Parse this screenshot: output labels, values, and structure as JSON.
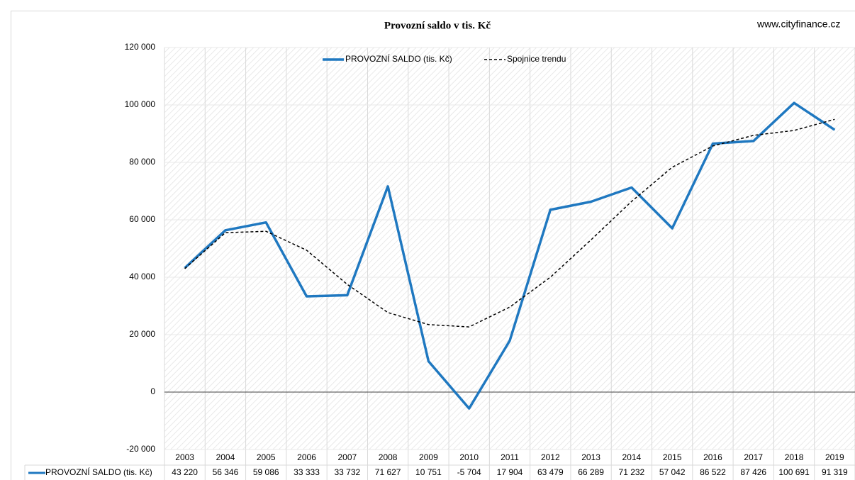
{
  "chart_data": {
    "type": "line",
    "title": "Provozní saldo v tis. Kč",
    "watermark": "www.cityfinance.cz",
    "categories": [
      "2003",
      "2004",
      "2005",
      "2006",
      "2007",
      "2008",
      "2009",
      "2010",
      "2011",
      "2012",
      "2013",
      "2014",
      "2015",
      "2016",
      "2017",
      "2018",
      "2019"
    ],
    "series": [
      {
        "name": "PROVOZNÍ SALDO (tis. Kč)",
        "color": "#1f78c0",
        "values": [
          43220,
          56346,
          59086,
          33333,
          33732,
          71627,
          10751,
          -5704,
          17904,
          63479,
          66289,
          71232,
          57042,
          86522,
          87426,
          100691,
          91319
        ],
        "value_labels": [
          "43 220",
          "56 346",
          "59 086",
          "33 333",
          "33 732",
          "71 627",
          "10 751",
          "-5 704",
          "17 904",
          "63 479",
          "66 289",
          "71 232",
          "57 042",
          "86 522",
          "87 426",
          "100 691",
          "91 319"
        ]
      },
      {
        "name": "Spojnice trendu",
        "color": "#000000",
        "dashed": true,
        "values": [
          43000,
          55500,
          56000,
          49400,
          37500,
          27700,
          23500,
          22700,
          29600,
          40000,
          53000,
          66400,
          78300,
          85700,
          89400,
          91100,
          95000
        ]
      }
    ],
    "ylim": [
      -20000,
      120000
    ],
    "yticks": [
      {
        "value": -20000,
        "label": "-20 000"
      },
      0,
      {
        "value": 20000,
        "label": "20 000"
      },
      {
        "value": 40000,
        "label": "40 000"
      },
      {
        "value": 60000,
        "label": "60 000"
      },
      {
        "value": 80000,
        "label": "80 000"
      },
      {
        "value": 100000,
        "label": "100 000"
      },
      {
        "value": 120000,
        "label": "120 000"
      }
    ],
    "grid": true
  }
}
